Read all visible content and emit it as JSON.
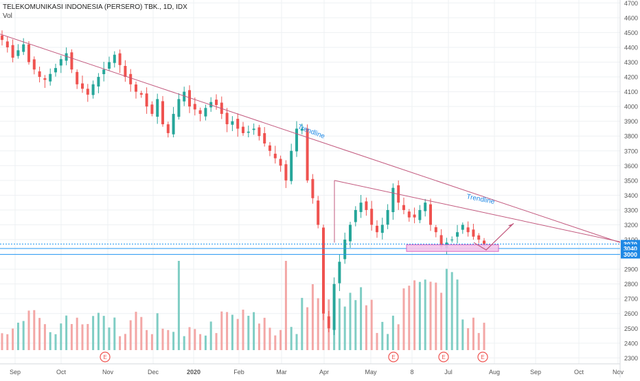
{
  "header": {
    "title": "TELEKOMUNIKASI INDONESIA (PERSERO) TBK., 1D, IDX",
    "volume_label": "Vol"
  },
  "colors": {
    "up": "#26a69a",
    "down": "#ef5350",
    "vol_up": "#7fcdc4",
    "vol_down": "#f3a7a6",
    "trendline": "#c2587d",
    "support_line": "#2196f3",
    "zone_fill": "#f4c6ea",
    "zone_border": "#d55bc0",
    "price_badge": "#1e88e5",
    "grid": "#eef0f3",
    "axis_text": "#555"
  },
  "annotations": {
    "trendline_1": "Trendline",
    "trendline_2": "Trendline",
    "earnings_marker": "E"
  },
  "chart_data": {
    "type": "candlestick",
    "title": "TELEKOMUNIKASI INDONESIA (PERSERO) TBK., 1D, IDX",
    "y_axis": {
      "position": "right",
      "ticks": [
        2300,
        2400,
        2500,
        2600,
        2700,
        2800,
        2900,
        3000,
        3100,
        3200,
        3300,
        3400,
        3500,
        3600,
        3700,
        3800,
        3900,
        4000,
        4100,
        4200,
        4300,
        4400,
        4500,
        4600,
        4700
      ],
      "range": [
        2260,
        4720
      ]
    },
    "x_axis": {
      "labels": [
        "Sep",
        "Oct",
        "Nov",
        "Dec",
        "2020",
        "Feb",
        "Mar",
        "Apr",
        "May",
        "8",
        "Jul",
        "Aug",
        "Sep",
        "Oct",
        "Nov"
      ]
    },
    "price_labels": [
      {
        "label": "3070",
        "value": 3070
      },
      {
        "label": "3040",
        "value": 3040
      },
      {
        "label": "3000",
        "value": 3000
      }
    ],
    "horizontal_levels": [
      3070,
      3040,
      3000
    ],
    "support_zone": [
      3020,
      3065
    ],
    "trendlines": [
      {
        "name": "Trendline",
        "from": [
          "Aug 2019",
          4490
        ],
        "to": [
          "Nov 2020",
          3080
        ]
      },
      {
        "name": "Trendline",
        "from": [
          "Apr 2020",
          3500
        ],
        "to": [
          "Sep 2020",
          3210
        ]
      }
    ],
    "earnings_events": [
      "Nov 2019",
      "May 2020",
      "Jun 2020",
      "Jul 2020"
    ],
    "close_series": [
      4450,
      4400,
      4330,
      4380,
      4420,
      4300,
      4250,
      4200,
      4180,
      4220,
      4260,
      4320,
      4360,
      4250,
      4150,
      4120,
      4080,
      4150,
      4200,
      4250,
      4300,
      4350,
      4280,
      4200,
      4150,
      4100,
      4080,
      4000,
      3950,
      4050,
      3880,
      3820,
      3950,
      4050,
      4100,
      4000,
      3980,
      3950,
      3990,
      4030,
      4010,
      3950,
      3880,
      3900,
      3850,
      3820,
      3830,
      3850,
      3800,
      3750,
      3700,
      3650,
      3600,
      3500,
      3700,
      3850,
      3850,
      3500,
      3380,
      3200,
      2600,
      2500,
      2800,
      2950,
      3100,
      3200,
      3300,
      3350,
      3300,
      3200,
      3150,
      3200,
      3300,
      3450,
      3350,
      3300,
      3250,
      3250,
      3300,
      3350,
      3200,
      3150,
      3050,
      3080,
      3100,
      3150,
      3200,
      3150,
      3120,
      3100,
      3070
    ]
  }
}
